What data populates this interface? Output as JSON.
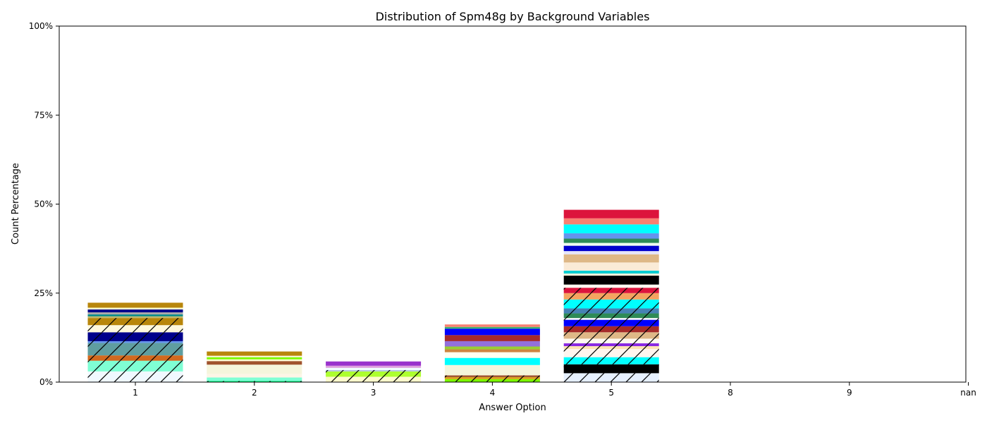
{
  "chart_data": {
    "type": "bar",
    "stacked": true,
    "title": "Distribution of Spm48g by Background Variables",
    "xlabel": "Answer Option",
    "ylabel": "Count Percentage",
    "ylim": [
      0,
      100
    ],
    "yticks": [
      "0%",
      "25%",
      "50%",
      "75%",
      "100%"
    ],
    "ytick_values": [
      0,
      25,
      50,
      75,
      100
    ],
    "categories": [
      "1",
      "2",
      "3",
      "4",
      "5",
      "8",
      "9",
      "nan"
    ],
    "grid": false,
    "legend": "none",
    "bars": [
      {
        "category": "1",
        "segments": [
          {
            "value": 3.0,
            "color": "#f0f8ff",
            "hatch": true
          },
          {
            "value": 3.0,
            "color": "#7fffd4",
            "hatch": true
          },
          {
            "value": 1.5,
            "color": "#d2691e",
            "hatch": true
          },
          {
            "value": 3.5,
            "color": "#5f9ea0",
            "hatch": true
          },
          {
            "value": 0.5,
            "color": "#6495ed",
            "hatch": true
          },
          {
            "value": 2.5,
            "color": "#00008b",
            "hatch": true
          },
          {
            "value": 2.0,
            "color": "#fff8dc",
            "hatch": true
          },
          {
            "value": 2.0,
            "color": "#b8860b",
            "hatch": true
          },
          {
            "value": 0.5,
            "color": "#bdb76b",
            "hatch": false
          },
          {
            "value": 0.5,
            "color": "#008b8b",
            "hatch": false
          },
          {
            "value": 0.6,
            "color": "#a9a9a9",
            "hatch": false
          },
          {
            "value": 0.8,
            "color": "#00008b",
            "hatch": false
          },
          {
            "value": 0.5,
            "color": "#fffacd",
            "hatch": false
          },
          {
            "value": 1.4,
            "color": "#b8860b",
            "hatch": false
          }
        ]
      },
      {
        "category": "2",
        "segments": [
          {
            "value": 0.3,
            "color": "#00ff7f",
            "hatch": true
          },
          {
            "value": 1.0,
            "color": "#7fffd4",
            "hatch": false
          },
          {
            "value": 1.0,
            "color": "#fdf5e6",
            "hatch": false
          },
          {
            "value": 2.6,
            "color": "#f5f5dc",
            "hatch": false
          },
          {
            "value": 1.0,
            "color": "#a0522d",
            "hatch": false
          },
          {
            "value": 0.5,
            "color": "#fafad2",
            "hatch": false
          },
          {
            "value": 0.6,
            "color": "#7cfc00",
            "hatch": false
          },
          {
            "value": 0.4,
            "color": "#fff8dc",
            "hatch": false
          },
          {
            "value": 1.2,
            "color": "#b8860b",
            "hatch": false
          }
        ]
      },
      {
        "category": "3",
        "segments": [
          {
            "value": 1.5,
            "color": "#fffacd",
            "hatch": true
          },
          {
            "value": 1.5,
            "color": "#adff2f",
            "hatch": true
          },
          {
            "value": 0.4,
            "color": "#b0c4de",
            "hatch": true
          },
          {
            "value": 0.6,
            "color": "#f0ffff",
            "hatch": false
          },
          {
            "value": 0.6,
            "color": "#dda0dd",
            "hatch": false
          },
          {
            "value": 1.2,
            "color": "#9932cc",
            "hatch": false
          }
        ]
      },
      {
        "category": "4",
        "segments": [
          {
            "value": 0.8,
            "color": "#7cfc00",
            "hatch": true
          },
          {
            "value": 0.6,
            "color": "#daa520",
            "hatch": true
          },
          {
            "value": 0.5,
            "color": "#a0522d",
            "hatch": true
          },
          {
            "value": 2.9,
            "color": "#f5f5dc",
            "hatch": false
          },
          {
            "value": 2.0,
            "color": "#00ffff",
            "hatch": false
          },
          {
            "value": 1.6,
            "color": "#fffff0",
            "hatch": false
          },
          {
            "value": 0.8,
            "color": "#cd853f",
            "hatch": false
          },
          {
            "value": 0.8,
            "color": "#9acd32",
            "hatch": false
          },
          {
            "value": 1.5,
            "color": "#9370db",
            "hatch": false
          },
          {
            "value": 1.7,
            "color": "#a52a2a",
            "hatch": false
          },
          {
            "value": 1.8,
            "color": "#0000ff",
            "hatch": false
          },
          {
            "value": 0.5,
            "color": "#3cb371",
            "hatch": false
          },
          {
            "value": 0.7,
            "color": "#fa8072",
            "hatch": false
          }
        ]
      },
      {
        "category": "5",
        "segments": [
          {
            "value": 2.5,
            "color": "#e6f0ff",
            "hatch": true
          },
          {
            "value": 2.5,
            "color": "#000000",
            "hatch": true
          },
          {
            "value": 2.0,
            "color": "#00ffff",
            "hatch": true
          },
          {
            "value": 2.3,
            "color": "#fff5ee",
            "hatch": true
          },
          {
            "value": 0.8,
            "color": "#ffe4b5",
            "hatch": true
          },
          {
            "value": 0.8,
            "color": "#8a2be2",
            "hatch": true
          },
          {
            "value": 1.3,
            "color": "#fffaf0",
            "hatch": true
          },
          {
            "value": 1.8,
            "color": "#deb887",
            "hatch": true
          },
          {
            "value": 1.7,
            "color": "#a52a2a",
            "hatch": true
          },
          {
            "value": 1.8,
            "color": "#0000ff",
            "hatch": true
          },
          {
            "value": 0.5,
            "color": "#f8f8ff",
            "hatch": true
          },
          {
            "value": 1.3,
            "color": "#2e8b57",
            "hatch": true
          },
          {
            "value": 1.4,
            "color": "#4682b4",
            "hatch": true
          },
          {
            "value": 2.5,
            "color": "#00ffff",
            "hatch": true
          },
          {
            "value": 1.8,
            "color": "#f4a460",
            "hatch": true
          },
          {
            "value": 1.5,
            "color": "#dc143c",
            "hatch": true
          },
          {
            "value": 0.9,
            "color": "#fffaf0",
            "hatch": false
          },
          {
            "value": 2.5,
            "color": "#000000",
            "hatch": false
          },
          {
            "value": 0.6,
            "color": "#fff8dc",
            "hatch": false
          },
          {
            "value": 0.8,
            "color": "#00ced1",
            "hatch": false
          },
          {
            "value": 2.3,
            "color": "#faebd7",
            "hatch": false
          },
          {
            "value": 2.3,
            "color": "#deb887",
            "hatch": false
          },
          {
            "value": 0.9,
            "color": "#e6e6fa",
            "hatch": false
          },
          {
            "value": 1.5,
            "color": "#0000cd",
            "hatch": false
          },
          {
            "value": 0.8,
            "color": "#f0fff0",
            "hatch": false
          },
          {
            "value": 1.2,
            "color": "#2e8b57",
            "hatch": false
          },
          {
            "value": 1.5,
            "color": "#6495ed",
            "hatch": false
          },
          {
            "value": 2.5,
            "color": "#00ffff",
            "hatch": false
          },
          {
            "value": 1.7,
            "color": "#fa8072",
            "hatch": false
          },
          {
            "value": 2.4,
            "color": "#dc143c",
            "hatch": false
          }
        ]
      }
    ]
  }
}
